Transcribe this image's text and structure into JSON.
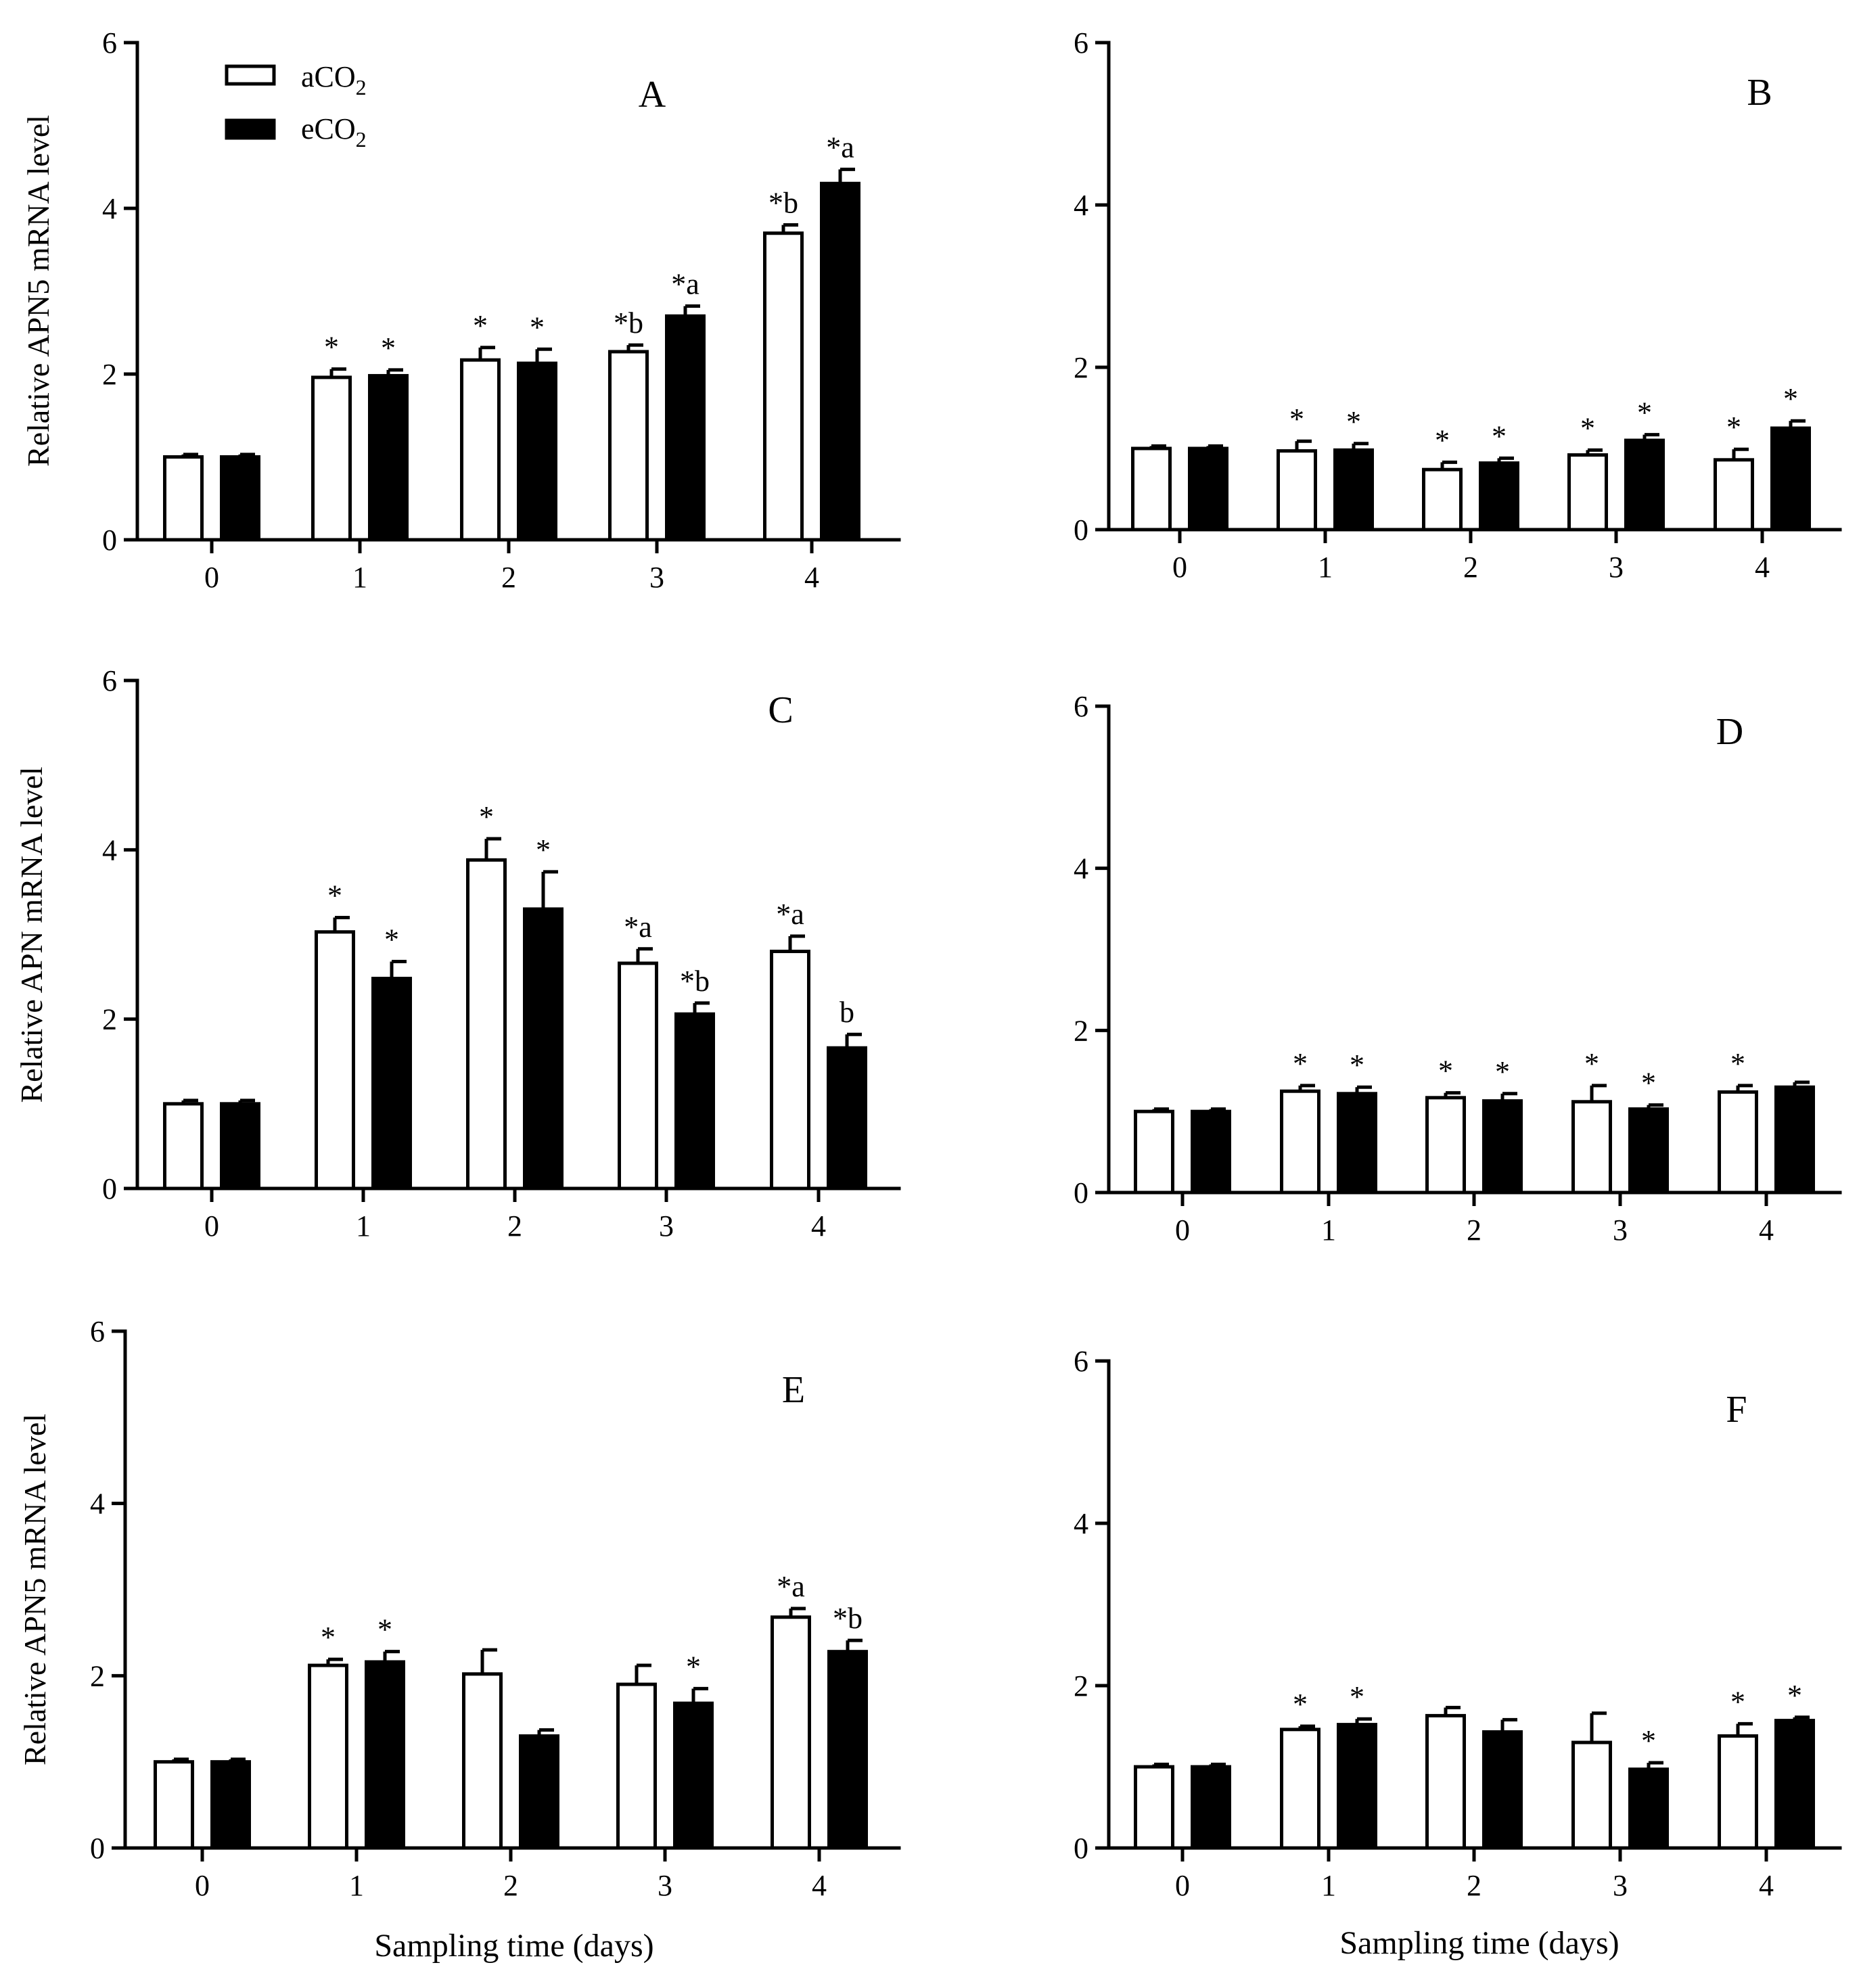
{
  "legend": {
    "series": [
      {
        "prefix": "aCO",
        "sub": "2",
        "fill": "#ffffff"
      },
      {
        "prefix": "eCO",
        "sub": "2",
        "fill": "#000000"
      }
    ]
  },
  "xlabel_shared": "Sampling time (days)",
  "chart_data": [
    {
      "type": "bar",
      "panel": "A",
      "ylabel": "Relative APN5 mRNA level",
      "ylim": [
        0,
        6
      ],
      "yticks": [
        "0",
        "2",
        "4",
        "6"
      ],
      "categories": [
        "0",
        "1",
        "2",
        "3",
        "4"
      ],
      "series": [
        {
          "name": "aCO2",
          "values": [
            1.0,
            1.96,
            2.17,
            2.27,
            3.7
          ],
          "errors": [
            0.03,
            0.1,
            0.15,
            0.08,
            0.1
          ],
          "labels": [
            "",
            "*",
            "*",
            "*b",
            "*b"
          ]
        },
        {
          "name": "eCO2",
          "values": [
            1.0,
            1.98,
            2.13,
            2.7,
            4.3
          ],
          "errors": [
            0.03,
            0.07,
            0.17,
            0.12,
            0.17
          ],
          "labels": [
            "",
            "*",
            "*",
            "*a",
            "*a"
          ]
        }
      ]
    },
    {
      "type": "bar",
      "panel": "B",
      "ylabel": "",
      "ylim": [
        0,
        6
      ],
      "yticks": [
        "0",
        "2",
        "4",
        "6"
      ],
      "categories": [
        "0",
        "1",
        "2",
        "3",
        "4"
      ],
      "series": [
        {
          "name": "aCO2",
          "values": [
            1.0,
            0.97,
            0.74,
            0.92,
            0.86
          ],
          "errors": [
            0.03,
            0.12,
            0.09,
            0.06,
            0.13
          ],
          "labels": [
            "",
            "*",
            "*",
            "*",
            "*"
          ]
        },
        {
          "name": "eCO2",
          "values": [
            1.0,
            0.98,
            0.82,
            1.1,
            1.25
          ],
          "errors": [
            0.03,
            0.08,
            0.06,
            0.07,
            0.09
          ],
          "labels": [
            "",
            "*",
            "*",
            "*",
            "*"
          ]
        }
      ]
    },
    {
      "type": "bar",
      "panel": "C",
      "ylabel": "Relative APN mRNA level",
      "ylim": [
        0,
        6
      ],
      "yticks": [
        "0",
        "2",
        "4",
        "6"
      ],
      "categories": [
        "0",
        "1",
        "2",
        "3",
        "4"
      ],
      "series": [
        {
          "name": "aCO2",
          "values": [
            1.0,
            3.03,
            3.88,
            2.66,
            2.8
          ],
          "errors": [
            0.04,
            0.17,
            0.25,
            0.17,
            0.18
          ],
          "labels": [
            "",
            "*",
            "*",
            "*a",
            "*a"
          ]
        },
        {
          "name": "eCO2",
          "values": [
            1.0,
            2.48,
            3.3,
            2.06,
            1.66
          ],
          "errors": [
            0.04,
            0.2,
            0.44,
            0.13,
            0.16
          ],
          "labels": [
            "",
            "*",
            "*",
            "*b",
            "b"
          ]
        }
      ]
    },
    {
      "type": "bar",
      "panel": "D",
      "ylabel": "",
      "ylim": [
        0,
        6
      ],
      "yticks": [
        "0",
        "2",
        "4",
        "6"
      ],
      "categories": [
        "0",
        "1",
        "2",
        "3",
        "4"
      ],
      "series": [
        {
          "name": "aCO2",
          "values": [
            1.0,
            1.25,
            1.17,
            1.12,
            1.24
          ],
          "errors": [
            0.03,
            0.07,
            0.06,
            0.2,
            0.08
          ],
          "labels": [
            "",
            "*",
            "*",
            "*",
            "*"
          ]
        },
        {
          "name": "eCO2",
          "values": [
            1.0,
            1.22,
            1.13,
            1.03,
            1.3
          ],
          "errors": [
            0.03,
            0.08,
            0.09,
            0.05,
            0.06
          ],
          "labels": [
            "",
            "*",
            "*",
            "*",
            ""
          ]
        }
      ]
    },
    {
      "type": "bar",
      "panel": "E",
      "ylabel": "Relative APN5 mRNA level",
      "ylim": [
        0,
        6
      ],
      "yticks": [
        "0",
        "2",
        "4",
        "6"
      ],
      "categories": [
        "0",
        "1",
        "2",
        "3",
        "4"
      ],
      "series": [
        {
          "name": "aCO2",
          "values": [
            1.0,
            2.12,
            2.02,
            1.9,
            2.68
          ],
          "errors": [
            0.03,
            0.07,
            0.28,
            0.22,
            0.1
          ],
          "labels": [
            "",
            "*",
            "",
            "",
            "*a"
          ]
        },
        {
          "name": "eCO2",
          "values": [
            1.0,
            2.16,
            1.3,
            1.68,
            2.28
          ],
          "errors": [
            0.03,
            0.12,
            0.07,
            0.17,
            0.13
          ],
          "labels": [
            "",
            "*",
            "",
            "*",
            "*b"
          ]
        }
      ]
    },
    {
      "type": "bar",
      "panel": "F",
      "ylabel": "",
      "ylim": [
        0,
        6
      ],
      "yticks": [
        "0",
        "2",
        "4",
        "6"
      ],
      "categories": [
        "0",
        "1",
        "2",
        "3",
        "4"
      ],
      "series": [
        {
          "name": "aCO2",
          "values": [
            1.0,
            1.46,
            1.63,
            1.3,
            1.38
          ],
          "errors": [
            0.03,
            0.04,
            0.1,
            0.36,
            0.15
          ],
          "labels": [
            "",
            "*",
            "",
            "",
            "*"
          ]
        },
        {
          "name": "eCO2",
          "values": [
            1.0,
            1.52,
            1.43,
            0.97,
            1.57
          ],
          "errors": [
            0.03,
            0.07,
            0.15,
            0.08,
            0.04
          ],
          "labels": [
            "",
            "*",
            "",
            "*",
            "*"
          ]
        }
      ]
    }
  ]
}
